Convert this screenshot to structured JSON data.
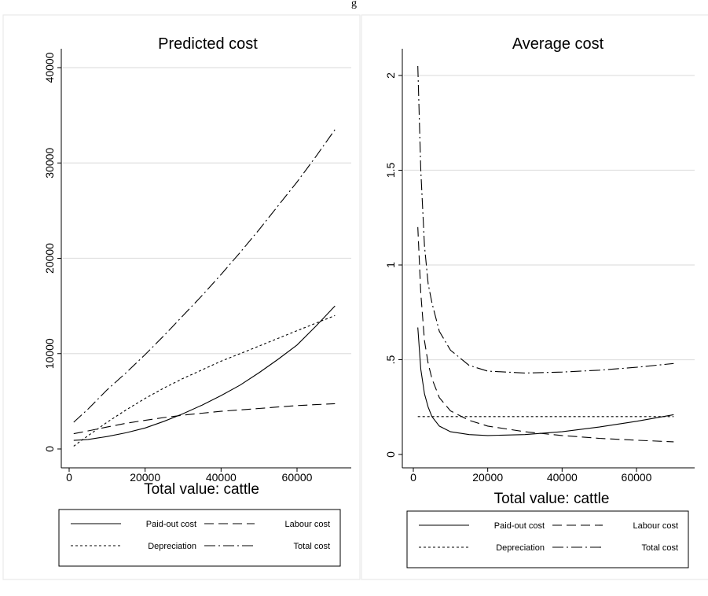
{
  "top_caption": "g",
  "chart_data": [
    {
      "type": "line",
      "title": "Predicted cost",
      "xlabel": "Total value: cattle",
      "ylabel": "",
      "xlim": [
        0,
        72000
      ],
      "ylim": [
        0,
        40000
      ],
      "x_ticks": [
        0,
        20000,
        40000,
        60000
      ],
      "x_tick_labels": [
        "0",
        "20000",
        "40000",
        "60000"
      ],
      "y_ticks": [
        0,
        10000,
        20000,
        30000,
        40000
      ],
      "y_tick_labels": [
        "0",
        "10000",
        "20000",
        "30000",
        "40000"
      ],
      "y_tick_label_rotation": "vertical",
      "grid": "horizontal",
      "legend_position": "bottom",
      "series": [
        {
          "name": "Paid-out cost",
          "style": "solid",
          "points": [
            [
              1200,
              900
            ],
            [
              5000,
              1000
            ],
            [
              10000,
              1300
            ],
            [
              15000,
              1700
            ],
            [
              20000,
              2200
            ],
            [
              25000,
              2900
            ],
            [
              30000,
              3700
            ],
            [
              35000,
              4600
            ],
            [
              40000,
              5600
            ],
            [
              45000,
              6700
            ],
            [
              50000,
              8000
            ],
            [
              55000,
              9400
            ],
            [
              60000,
              10900
            ],
            [
              65000,
              12900
            ],
            [
              70000,
              15000
            ]
          ]
        },
        {
          "name": "Labour cost",
          "style": "dash",
          "points": [
            [
              1200,
              1600
            ],
            [
              5000,
              1900
            ],
            [
              10000,
              2300
            ],
            [
              15000,
              2700
            ],
            [
              20000,
              3000
            ],
            [
              25000,
              3300
            ],
            [
              30000,
              3550
            ],
            [
              35000,
              3750
            ],
            [
              40000,
              3950
            ],
            [
              45000,
              4100
            ],
            [
              50000,
              4250
            ],
            [
              55000,
              4400
            ],
            [
              60000,
              4550
            ],
            [
              65000,
              4650
            ],
            [
              70000,
              4750
            ]
          ]
        },
        {
          "name": "Depreciation",
          "style": "dot",
          "points": [
            [
              1200,
              300
            ],
            [
              5000,
              1400
            ],
            [
              10000,
              2800
            ],
            [
              15000,
              4100
            ],
            [
              20000,
              5300
            ],
            [
              25000,
              6400
            ],
            [
              30000,
              7400
            ],
            [
              35000,
              8300
            ],
            [
              40000,
              9200
            ],
            [
              45000,
              10000
            ],
            [
              50000,
              10800
            ],
            [
              55000,
              11600
            ],
            [
              60000,
              12400
            ],
            [
              65000,
              13200
            ],
            [
              70000,
              14000
            ]
          ]
        },
        {
          "name": "Total cost",
          "style": "dashdot",
          "points": [
            [
              1200,
              2800
            ],
            [
              5000,
              4200
            ],
            [
              10000,
              6200
            ],
            [
              15000,
              8000
            ],
            [
              20000,
              9900
            ],
            [
              25000,
              11900
            ],
            [
              30000,
              14000
            ],
            [
              35000,
              16100
            ],
            [
              40000,
              18300
            ],
            [
              45000,
              20600
            ],
            [
              50000,
              23000
            ],
            [
              55000,
              25500
            ],
            [
              60000,
              28000
            ],
            [
              65000,
              30700
            ],
            [
              70000,
              33500
            ]
          ]
        }
      ],
      "legend_entries": [
        "Paid-out cost",
        "Labour cost",
        "Depreciation",
        "Total cost"
      ]
    },
    {
      "type": "line",
      "title": "Average cost",
      "xlabel": "Total value: cattle",
      "ylabel": "",
      "xlim": [
        0,
        72000
      ],
      "ylim": [
        0,
        2
      ],
      "x_ticks": [
        0,
        20000,
        40000,
        60000
      ],
      "x_tick_labels": [
        "0",
        "20000",
        "40000",
        "60000"
      ],
      "y_ticks": [
        0,
        0.5,
        1,
        1.5,
        2
      ],
      "y_tick_labels": [
        "0",
        ".5",
        "1",
        "1.5",
        "2"
      ],
      "y_tick_label_rotation": "vertical",
      "grid": "horizontal",
      "legend_position": "bottom",
      "series": [
        {
          "name": "Paid-out cost",
          "style": "solid",
          "points": [
            [
              1200,
              0.67
            ],
            [
              2000,
              0.45
            ],
            [
              3000,
              0.32
            ],
            [
              4000,
              0.25
            ],
            [
              5000,
              0.2
            ],
            [
              7000,
              0.15
            ],
            [
              10000,
              0.12
            ],
            [
              15000,
              0.105
            ],
            [
              20000,
              0.1
            ],
            [
              30000,
              0.105
            ],
            [
              40000,
              0.12
            ],
            [
              50000,
              0.145
            ],
            [
              60000,
              0.175
            ],
            [
              70000,
              0.21
            ]
          ]
        },
        {
          "name": "Labour cost",
          "style": "dash",
          "points": [
            [
              1200,
              1.2
            ],
            [
              2000,
              0.85
            ],
            [
              3000,
              0.6
            ],
            [
              4000,
              0.48
            ],
            [
              5000,
              0.4
            ],
            [
              7000,
              0.3
            ],
            [
              10000,
              0.23
            ],
            [
              15000,
              0.18
            ],
            [
              20000,
              0.15
            ],
            [
              30000,
              0.12
            ],
            [
              40000,
              0.1
            ],
            [
              50000,
              0.085
            ],
            [
              60000,
              0.075
            ],
            [
              70000,
              0.067
            ]
          ]
        },
        {
          "name": "Depreciation",
          "style": "dot",
          "points": [
            [
              1200,
              0.2
            ],
            [
              70000,
              0.2
            ]
          ]
        },
        {
          "name": "Total cost",
          "style": "dashdot",
          "points": [
            [
              1200,
              2.05
            ],
            [
              2000,
              1.5
            ],
            [
              3000,
              1.1
            ],
            [
              4000,
              0.9
            ],
            [
              5000,
              0.8
            ],
            [
              7000,
              0.65
            ],
            [
              10000,
              0.55
            ],
            [
              15000,
              0.47
            ],
            [
              20000,
              0.44
            ],
            [
              30000,
              0.43
            ],
            [
              40000,
              0.435
            ],
            [
              50000,
              0.445
            ],
            [
              60000,
              0.46
            ],
            [
              70000,
              0.48
            ]
          ]
        }
      ],
      "legend_entries": [
        "Paid-out cost",
        "Labour cost",
        "Depreciation",
        "Total cost"
      ]
    }
  ]
}
